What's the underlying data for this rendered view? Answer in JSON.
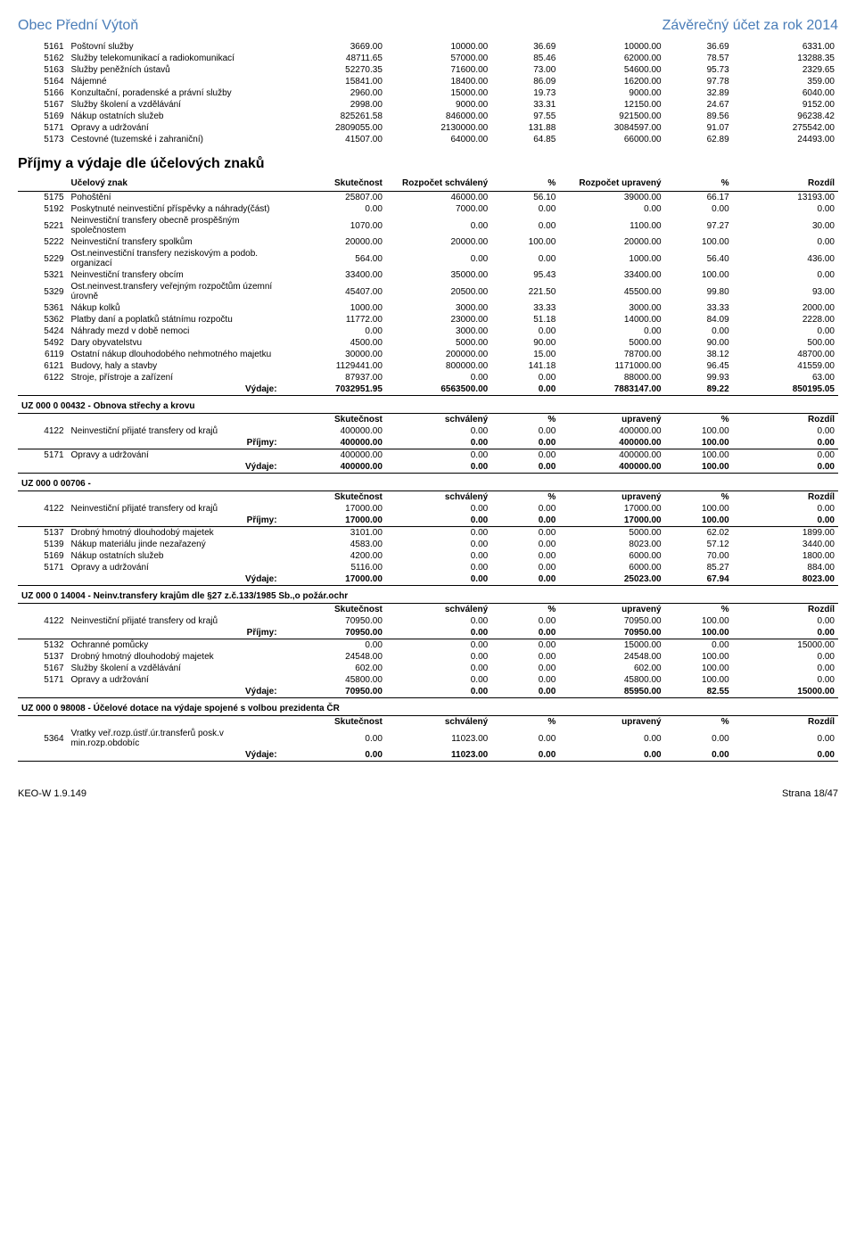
{
  "header": {
    "left": "Obec Přední Výtoň",
    "right": "Závěrečný účet za rok 2014"
  },
  "footer": {
    "left": "KEO-W 1.9.149",
    "right": "Strana 18/47"
  },
  "top_rows": [
    {
      "c": "5161",
      "n": "Poštovní služby",
      "v": [
        "3669.00",
        "10000.00",
        "36.69",
        "10000.00",
        "36.69",
        "6331.00"
      ]
    },
    {
      "c": "5162",
      "n": "Služby telekomunikací a radiokomunikací",
      "v": [
        "48711.65",
        "57000.00",
        "85.46",
        "62000.00",
        "78.57",
        "13288.35"
      ]
    },
    {
      "c": "5163",
      "n": "Služby peněžních ústavů",
      "v": [
        "52270.35",
        "71600.00",
        "73.00",
        "54600.00",
        "95.73",
        "2329.65"
      ]
    },
    {
      "c": "5164",
      "n": "Nájemné",
      "v": [
        "15841.00",
        "18400.00",
        "86.09",
        "16200.00",
        "97.78",
        "359.00"
      ]
    },
    {
      "c": "5166",
      "n": "Konzultační, poradenské a právní služby",
      "v": [
        "2960.00",
        "15000.00",
        "19.73",
        "9000.00",
        "32.89",
        "6040.00"
      ]
    },
    {
      "c": "5167",
      "n": "Služby školení a vzdělávání",
      "v": [
        "2998.00",
        "9000.00",
        "33.31",
        "12150.00",
        "24.67",
        "9152.00"
      ]
    },
    {
      "c": "5169",
      "n": "Nákup ostatních služeb",
      "v": [
        "825261.58",
        "846000.00",
        "97.55",
        "921500.00",
        "89.56",
        "96238.42"
      ]
    },
    {
      "c": "5171",
      "n": "Opravy a udržování",
      "v": [
        "2809055.00",
        "2130000.00",
        "131.88",
        "3084597.00",
        "91.07",
        "275542.00"
      ]
    },
    {
      "c": "5173",
      "n": "Cestovné (tuzemské i zahraniční)",
      "v": [
        "41507.00",
        "64000.00",
        "64.85",
        "66000.00",
        "62.89",
        "24493.00"
      ]
    }
  ],
  "section_title": "Příjmy a výdaje dle účelových znaků",
  "th": {
    "a": "Učelový znak",
    "b": "Skutečnost",
    "c": "Rozpočet schválený",
    "d": "%",
    "e": "Rozpočet upravený",
    "f": "%",
    "g": "Rozdíl"
  },
  "mid_rows": [
    {
      "c": "5175",
      "n": "Pohoštění",
      "v": [
        "25807.00",
        "46000.00",
        "56.10",
        "39000.00",
        "66.17",
        "13193.00"
      ]
    },
    {
      "c": "5192",
      "n": "Poskytnuté neinvestiční příspěvky a náhrady(část)",
      "v": [
        "0.00",
        "7000.00",
        "0.00",
        "0.00",
        "0.00",
        "0.00"
      ]
    },
    {
      "c": "5221",
      "n": "Neinvestiční transfery obecně prospěšným společnostem",
      "v": [
        "1070.00",
        "0.00",
        "0.00",
        "1100.00",
        "97.27",
        "30.00"
      ]
    },
    {
      "c": "5222",
      "n": "Neinvestiční transfery spolkům",
      "v": [
        "20000.00",
        "20000.00",
        "100.00",
        "20000.00",
        "100.00",
        "0.00"
      ]
    },
    {
      "c": "5229",
      "n": "Ost.neinvestiční transfery neziskovým a podob. organizací",
      "v": [
        "564.00",
        "0.00",
        "0.00",
        "1000.00",
        "56.40",
        "436.00"
      ]
    },
    {
      "c": "5321",
      "n": "Neinvestiční transfery obcím",
      "v": [
        "33400.00",
        "35000.00",
        "95.43",
        "33400.00",
        "100.00",
        "0.00"
      ]
    },
    {
      "c": "5329",
      "n": "Ost.neinvest.transfery veřejným rozpočtům územní úrovně",
      "v": [
        "45407.00",
        "20500.00",
        "221.50",
        "45500.00",
        "99.80",
        "93.00"
      ]
    },
    {
      "c": "5361",
      "n": "Nákup kolků",
      "v": [
        "1000.00",
        "3000.00",
        "33.33",
        "3000.00",
        "33.33",
        "2000.00"
      ]
    },
    {
      "c": "5362",
      "n": "Platby daní a poplatků státnímu rozpočtu",
      "v": [
        "11772.00",
        "23000.00",
        "51.18",
        "14000.00",
        "84.09",
        "2228.00"
      ]
    },
    {
      "c": "5424",
      "n": "Náhrady mezd v době nemoci",
      "v": [
        "0.00",
        "3000.00",
        "0.00",
        "0.00",
        "0.00",
        "0.00"
      ]
    },
    {
      "c": "5492",
      "n": "Dary obyvatelstvu",
      "v": [
        "4500.00",
        "5000.00",
        "90.00",
        "5000.00",
        "90.00",
        "500.00"
      ]
    },
    {
      "c": "6119",
      "n": "Ostatní nákup dlouhodobého nehmotného majetku",
      "v": [
        "30000.00",
        "200000.00",
        "15.00",
        "78700.00",
        "38.12",
        "48700.00"
      ]
    },
    {
      "c": "6121",
      "n": "Budovy, haly a stavby",
      "v": [
        "1129441.00",
        "800000.00",
        "141.18",
        "1171000.00",
        "96.45",
        "41559.00"
      ]
    },
    {
      "c": "6122",
      "n": "Stroje, přístroje a zařízení",
      "v": [
        "87937.00",
        "0.00",
        "0.00",
        "88000.00",
        "99.93",
        "63.00"
      ]
    }
  ],
  "mid_vydaje": {
    "n": "Výdaje:",
    "v": [
      "7032951.95",
      "6563500.00",
      "0.00",
      "7883147.00",
      "89.22",
      "850195.05"
    ]
  },
  "uz": [
    {
      "hdr": "UZ   000   0      00432      -   Obnova střechy a krovu",
      "sub": [
        "Skutečnost",
        "schválený",
        "%",
        "upravený",
        "%",
        "Rozdíl"
      ],
      "rows": [
        {
          "c": "4122",
          "n": "Neinvestiční přijaté transfery od krajů",
          "v": [
            "400000.00",
            "0.00",
            "0.00",
            "400000.00",
            "100.00",
            "0.00"
          ]
        }
      ],
      "pr": {
        "n": "Příjmy:",
        "v": [
          "400000.00",
          "0.00",
          "0.00",
          "400000.00",
          "100.00",
          "0.00"
        ]
      },
      "rows2": [
        {
          "c": "5171",
          "n": "Opravy a udržování",
          "v": [
            "400000.00",
            "0.00",
            "0.00",
            "400000.00",
            "100.00",
            "0.00"
          ]
        }
      ],
      "vy": {
        "n": "Výdaje:",
        "v": [
          "400000.00",
          "0.00",
          "0.00",
          "400000.00",
          "100.00",
          "0.00"
        ]
      }
    },
    {
      "hdr": "UZ   000   0      00706      -",
      "sub": [
        "Skutečnost",
        "schválený",
        "%",
        "upravený",
        "%",
        "Rozdíl"
      ],
      "rows": [
        {
          "c": "4122",
          "n": "Neinvestiční přijaté transfery od krajů",
          "v": [
            "17000.00",
            "0.00",
            "0.00",
            "17000.00",
            "100.00",
            "0.00"
          ]
        }
      ],
      "pr": {
        "n": "Příjmy:",
        "v": [
          "17000.00",
          "0.00",
          "0.00",
          "17000.00",
          "100.00",
          "0.00"
        ]
      },
      "rows2": [
        {
          "c": "5137",
          "n": "Drobný hmotný dlouhodobý majetek",
          "v": [
            "3101.00",
            "0.00",
            "0.00",
            "5000.00",
            "62.02",
            "1899.00"
          ]
        },
        {
          "c": "5139",
          "n": "Nákup materiálu jinde nezařazený",
          "v": [
            "4583.00",
            "0.00",
            "0.00",
            "8023.00",
            "57.12",
            "3440.00"
          ]
        },
        {
          "c": "5169",
          "n": "Nákup ostatních služeb",
          "v": [
            "4200.00",
            "0.00",
            "0.00",
            "6000.00",
            "70.00",
            "1800.00"
          ]
        },
        {
          "c": "5171",
          "n": "Opravy a udržování",
          "v": [
            "5116.00",
            "0.00",
            "0.00",
            "6000.00",
            "85.27",
            "884.00"
          ]
        }
      ],
      "vy": {
        "n": "Výdaje:",
        "v": [
          "17000.00",
          "0.00",
          "0.00",
          "25023.00",
          "67.94",
          "8023.00"
        ]
      }
    },
    {
      "hdr": "UZ   000   0      14004      -   Neinv.transfery krajům dle §27 z.č.133/1985 Sb.,o požár.ochr",
      "sub": [
        "Skutečnost",
        "schválený",
        "%",
        "upravený",
        "%",
        "Rozdíl"
      ],
      "rows": [
        {
          "c": "4122",
          "n": "Neinvestiční přijaté transfery od krajů",
          "v": [
            "70950.00",
            "0.00",
            "0.00",
            "70950.00",
            "100.00",
            "0.00"
          ]
        }
      ],
      "pr": {
        "n": "Příjmy:",
        "v": [
          "70950.00",
          "0.00",
          "0.00",
          "70950.00",
          "100.00",
          "0.00"
        ]
      },
      "rows2": [
        {
          "c": "5132",
          "n": "Ochranné pomůcky",
          "v": [
            "0.00",
            "0.00",
            "0.00",
            "15000.00",
            "0.00",
            "15000.00"
          ]
        },
        {
          "c": "5137",
          "n": "Drobný hmotný dlouhodobý majetek",
          "v": [
            "24548.00",
            "0.00",
            "0.00",
            "24548.00",
            "100.00",
            "0.00"
          ]
        },
        {
          "c": "5167",
          "n": "Služby školení a vzdělávání",
          "v": [
            "602.00",
            "0.00",
            "0.00",
            "602.00",
            "100.00",
            "0.00"
          ]
        },
        {
          "c": "5171",
          "n": "Opravy a udržování",
          "v": [
            "45800.00",
            "0.00",
            "0.00",
            "45800.00",
            "100.00",
            "0.00"
          ]
        }
      ],
      "vy": {
        "n": "Výdaje:",
        "v": [
          "70950.00",
          "0.00",
          "0.00",
          "85950.00",
          "82.55",
          "15000.00"
        ]
      }
    },
    {
      "hdr": "UZ   000   0      98008      -   Účelové dotace na výdaje spojené s volbou prezidenta ČR",
      "sub": [
        "Skutečnost",
        "schválený",
        "%",
        "upravený",
        "%",
        "Rozdíl"
      ],
      "rows": [],
      "pr": null,
      "rows2": [
        {
          "c": "5364",
          "n": "Vratky veř.rozp.ústř.úr.transferů posk.v min.rozp.obdobíc",
          "v": [
            "0.00",
            "11023.00",
            "0.00",
            "0.00",
            "0.00",
            "0.00"
          ]
        }
      ],
      "vy": {
        "n": "Výdaje:",
        "v": [
          "0.00",
          "11023.00",
          "0.00",
          "0.00",
          "0.00",
          "0.00"
        ]
      }
    }
  ]
}
